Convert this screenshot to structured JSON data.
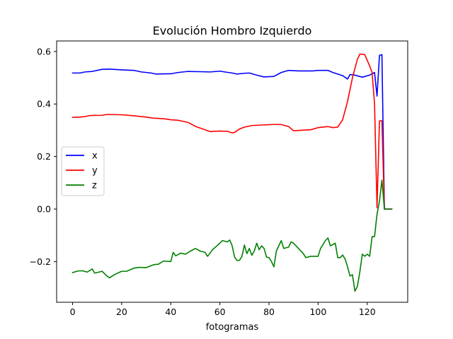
{
  "chart_data": {
    "type": "line",
    "title": "Evolución Hombro Izquierdo",
    "xlabel": "fotogramas",
    "ylabel": "",
    "xlim": [
      -6.5,
      136.5
    ],
    "ylim": [
      -0.355,
      0.64
    ],
    "xticks": [
      0,
      20,
      40,
      60,
      80,
      100,
      120
    ],
    "yticks": [
      -0.2,
      0.0,
      0.2,
      0.4,
      0.6
    ],
    "xtick_labels": [
      "0",
      "20",
      "40",
      "60",
      "80",
      "100",
      "120"
    ],
    "ytick_labels": [
      "−0.2",
      "0.0",
      "0.2",
      "0.4",
      "0.6"
    ],
    "legend_position": "center-left",
    "grid": false,
    "series": [
      {
        "name": "x",
        "color": "#0000ff",
        "points": [
          [
            0,
            0.518
          ],
          [
            3,
            0.518
          ],
          [
            5,
            0.522
          ],
          [
            8,
            0.524
          ],
          [
            12,
            0.532
          ],
          [
            15,
            0.533
          ],
          [
            20,
            0.53
          ],
          [
            25,
            0.528
          ],
          [
            28,
            0.522
          ],
          [
            32,
            0.518
          ],
          [
            34,
            0.514
          ],
          [
            40,
            0.515
          ],
          [
            43,
            0.52
          ],
          [
            47,
            0.524
          ],
          [
            52,
            0.523
          ],
          [
            56,
            0.522
          ],
          [
            60,
            0.525
          ],
          [
            62,
            0.522
          ],
          [
            65,
            0.518
          ],
          [
            67,
            0.514
          ],
          [
            70,
            0.517
          ],
          [
            72,
            0.518
          ],
          [
            75,
            0.51
          ],
          [
            78,
            0.503
          ],
          [
            82,
            0.505
          ],
          [
            85,
            0.52
          ],
          [
            88,
            0.528
          ],
          [
            92,
            0.526
          ],
          [
            98,
            0.526
          ],
          [
            100,
            0.528
          ],
          [
            104,
            0.528
          ],
          [
            106,
            0.52
          ],
          [
            110,
            0.508
          ],
          [
            112,
            0.495
          ],
          [
            113,
            0.512
          ],
          [
            115,
            0.51
          ],
          [
            118,
            0.502
          ],
          [
            121,
            0.51
          ],
          [
            123,
            0.52
          ],
          [
            124,
            0.43
          ],
          [
            125,
            0.585
          ],
          [
            126,
            0.588
          ],
          [
            127,
            0.0
          ],
          [
            130,
            0.0
          ]
        ]
      },
      {
        "name": "y",
        "color": "#ff0000",
        "points": [
          [
            0,
            0.349
          ],
          [
            3,
            0.35
          ],
          [
            5,
            0.352
          ],
          [
            7,
            0.356
          ],
          [
            12,
            0.357
          ],
          [
            14,
            0.36
          ],
          [
            20,
            0.359
          ],
          [
            25,
            0.355
          ],
          [
            30,
            0.35
          ],
          [
            33,
            0.346
          ],
          [
            37,
            0.344
          ],
          [
            40,
            0.34
          ],
          [
            43,
            0.338
          ],
          [
            47,
            0.33
          ],
          [
            50,
            0.315
          ],
          [
            53,
            0.305
          ],
          [
            56,
            0.295
          ],
          [
            60,
            0.297
          ],
          [
            63,
            0.296
          ],
          [
            65,
            0.29
          ],
          [
            66,
            0.292
          ],
          [
            68,
            0.305
          ],
          [
            70,
            0.312
          ],
          [
            73,
            0.318
          ],
          [
            77,
            0.32
          ],
          [
            82,
            0.322
          ],
          [
            85,
            0.322
          ],
          [
            88,
            0.314
          ],
          [
            90,
            0.298
          ],
          [
            93,
            0.3
          ],
          [
            97,
            0.302
          ],
          [
            100,
            0.31
          ],
          [
            104,
            0.314
          ],
          [
            106,
            0.31
          ],
          [
            108,
            0.312
          ],
          [
            110,
            0.34
          ],
          [
            112,
            0.41
          ],
          [
            114,
            0.5
          ],
          [
            116,
            0.57
          ],
          [
            117,
            0.59
          ],
          [
            119,
            0.588
          ],
          [
            121,
            0.545
          ],
          [
            122,
            0.52
          ],
          [
            123,
            0.4
          ],
          [
            124,
            0.005
          ],
          [
            125,
            0.336
          ],
          [
            126,
            0.336
          ],
          [
            127,
            0.0
          ],
          [
            130,
            0.0
          ]
        ]
      },
      {
        "name": "z",
        "color": "#008000",
        "points": [
          [
            0,
            -0.242
          ],
          [
            2,
            -0.236
          ],
          [
            4,
            -0.235
          ],
          [
            6,
            -0.24
          ],
          [
            8,
            -0.228
          ],
          [
            9,
            -0.244
          ],
          [
            12,
            -0.237
          ],
          [
            14,
            -0.255
          ],
          [
            15,
            -0.262
          ],
          [
            17,
            -0.25
          ],
          [
            20,
            -0.237
          ],
          [
            22,
            -0.237
          ],
          [
            25,
            -0.225
          ],
          [
            27,
            -0.222
          ],
          [
            30,
            -0.223
          ],
          [
            33,
            -0.212
          ],
          [
            35,
            -0.21
          ],
          [
            37,
            -0.198
          ],
          [
            40,
            -0.2
          ],
          [
            41,
            -0.165
          ],
          [
            42,
            -0.178
          ],
          [
            44,
            -0.168
          ],
          [
            46,
            -0.172
          ],
          [
            48,
            -0.16
          ],
          [
            50,
            -0.15
          ],
          [
            52,
            -0.16
          ],
          [
            54,
            -0.165
          ],
          [
            55,
            -0.18
          ],
          [
            57,
            -0.155
          ],
          [
            60,
            -0.13
          ],
          [
            61,
            -0.12
          ],
          [
            63,
            -0.125
          ],
          [
            64,
            -0.118
          ],
          [
            65,
            -0.14
          ],
          [
            66,
            -0.183
          ],
          [
            67,
            -0.196
          ],
          [
            68,
            -0.195
          ],
          [
            69,
            -0.18
          ],
          [
            70,
            -0.137
          ],
          [
            71,
            -0.17
          ],
          [
            72,
            -0.15
          ],
          [
            73,
            -0.176
          ],
          [
            74,
            -0.16
          ],
          [
            75,
            -0.13
          ],
          [
            76,
            -0.155
          ],
          [
            77,
            -0.14
          ],
          [
            78,
            -0.15
          ],
          [
            79,
            -0.183
          ],
          [
            80,
            -0.185
          ],
          [
            81,
            -0.2
          ],
          [
            82,
            -0.22
          ],
          [
            83,
            -0.16
          ],
          [
            85,
            -0.12
          ],
          [
            86,
            -0.15
          ],
          [
            88,
            -0.145
          ],
          [
            89,
            -0.125
          ],
          [
            90,
            -0.13
          ],
          [
            92,
            -0.15
          ],
          [
            94,
            -0.17
          ],
          [
            95,
            -0.185
          ],
          [
            97,
            -0.18
          ],
          [
            100,
            -0.18
          ],
          [
            101,
            -0.15
          ],
          [
            103,
            -0.12
          ],
          [
            104,
            -0.11
          ],
          [
            105,
            -0.14
          ],
          [
            107,
            -0.13
          ],
          [
            108,
            -0.185
          ],
          [
            109,
            -0.185
          ],
          [
            110,
            -0.175
          ],
          [
            111,
            -0.19
          ],
          [
            112,
            -0.22
          ],
          [
            113,
            -0.255
          ],
          [
            114,
            -0.25
          ],
          [
            115,
            -0.313
          ],
          [
            116,
            -0.295
          ],
          [
            117,
            -0.24
          ],
          [
            118,
            -0.172
          ],
          [
            119,
            -0.18
          ],
          [
            120,
            -0.172
          ],
          [
            121,
            -0.18
          ],
          [
            122,
            -0.105
          ],
          [
            123,
            -0.105
          ],
          [
            124,
            -0.02
          ],
          [
            125,
            0.03
          ],
          [
            126,
            0.11
          ],
          [
            127,
            0.0
          ],
          [
            130,
            0.0
          ]
        ]
      }
    ]
  }
}
